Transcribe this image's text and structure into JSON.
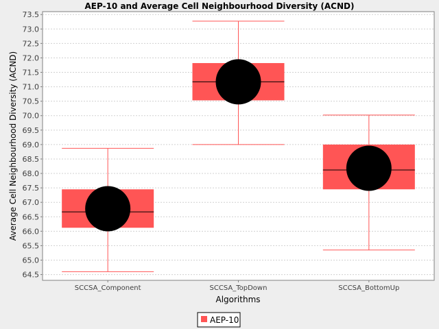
{
  "chart_data": {
    "type": "box",
    "title": "AEP-10 and Average Cell Neighbourhood Diversity (ACND)",
    "xlabel": "Algorithms",
    "ylabel": "Average Cell Neighbourhood Diversity (ACND)",
    "ylim": [
      64.3,
      73.6
    ],
    "yticks": [
      64.5,
      65.0,
      65.5,
      66.0,
      66.5,
      67.0,
      67.5,
      68.0,
      68.5,
      69.0,
      69.5,
      70.0,
      70.5,
      71.0,
      71.5,
      72.0,
      72.5,
      73.0,
      73.5
    ],
    "grid": true,
    "legend_position": "bottom-center",
    "categories": [
      "SCCSA_Component",
      "SCCSA_TopDown",
      "SCCSA_BottomUp"
    ],
    "series": [
      {
        "name": "AEP-10",
        "color": "#ff5555",
        "boxes": [
          {
            "min": 64.6,
            "q1": 66.12,
            "median": 66.67,
            "q3": 67.45,
            "max": 68.87,
            "mean": 66.78
          },
          {
            "min": 69.0,
            "q1": 70.53,
            "median": 71.17,
            "q3": 71.82,
            "max": 73.27,
            "mean": 71.17
          },
          {
            "min": 65.35,
            "q1": 67.45,
            "median": 68.12,
            "q3": 69.0,
            "max": 70.02,
            "mean": 68.18
          }
        ]
      }
    ]
  }
}
